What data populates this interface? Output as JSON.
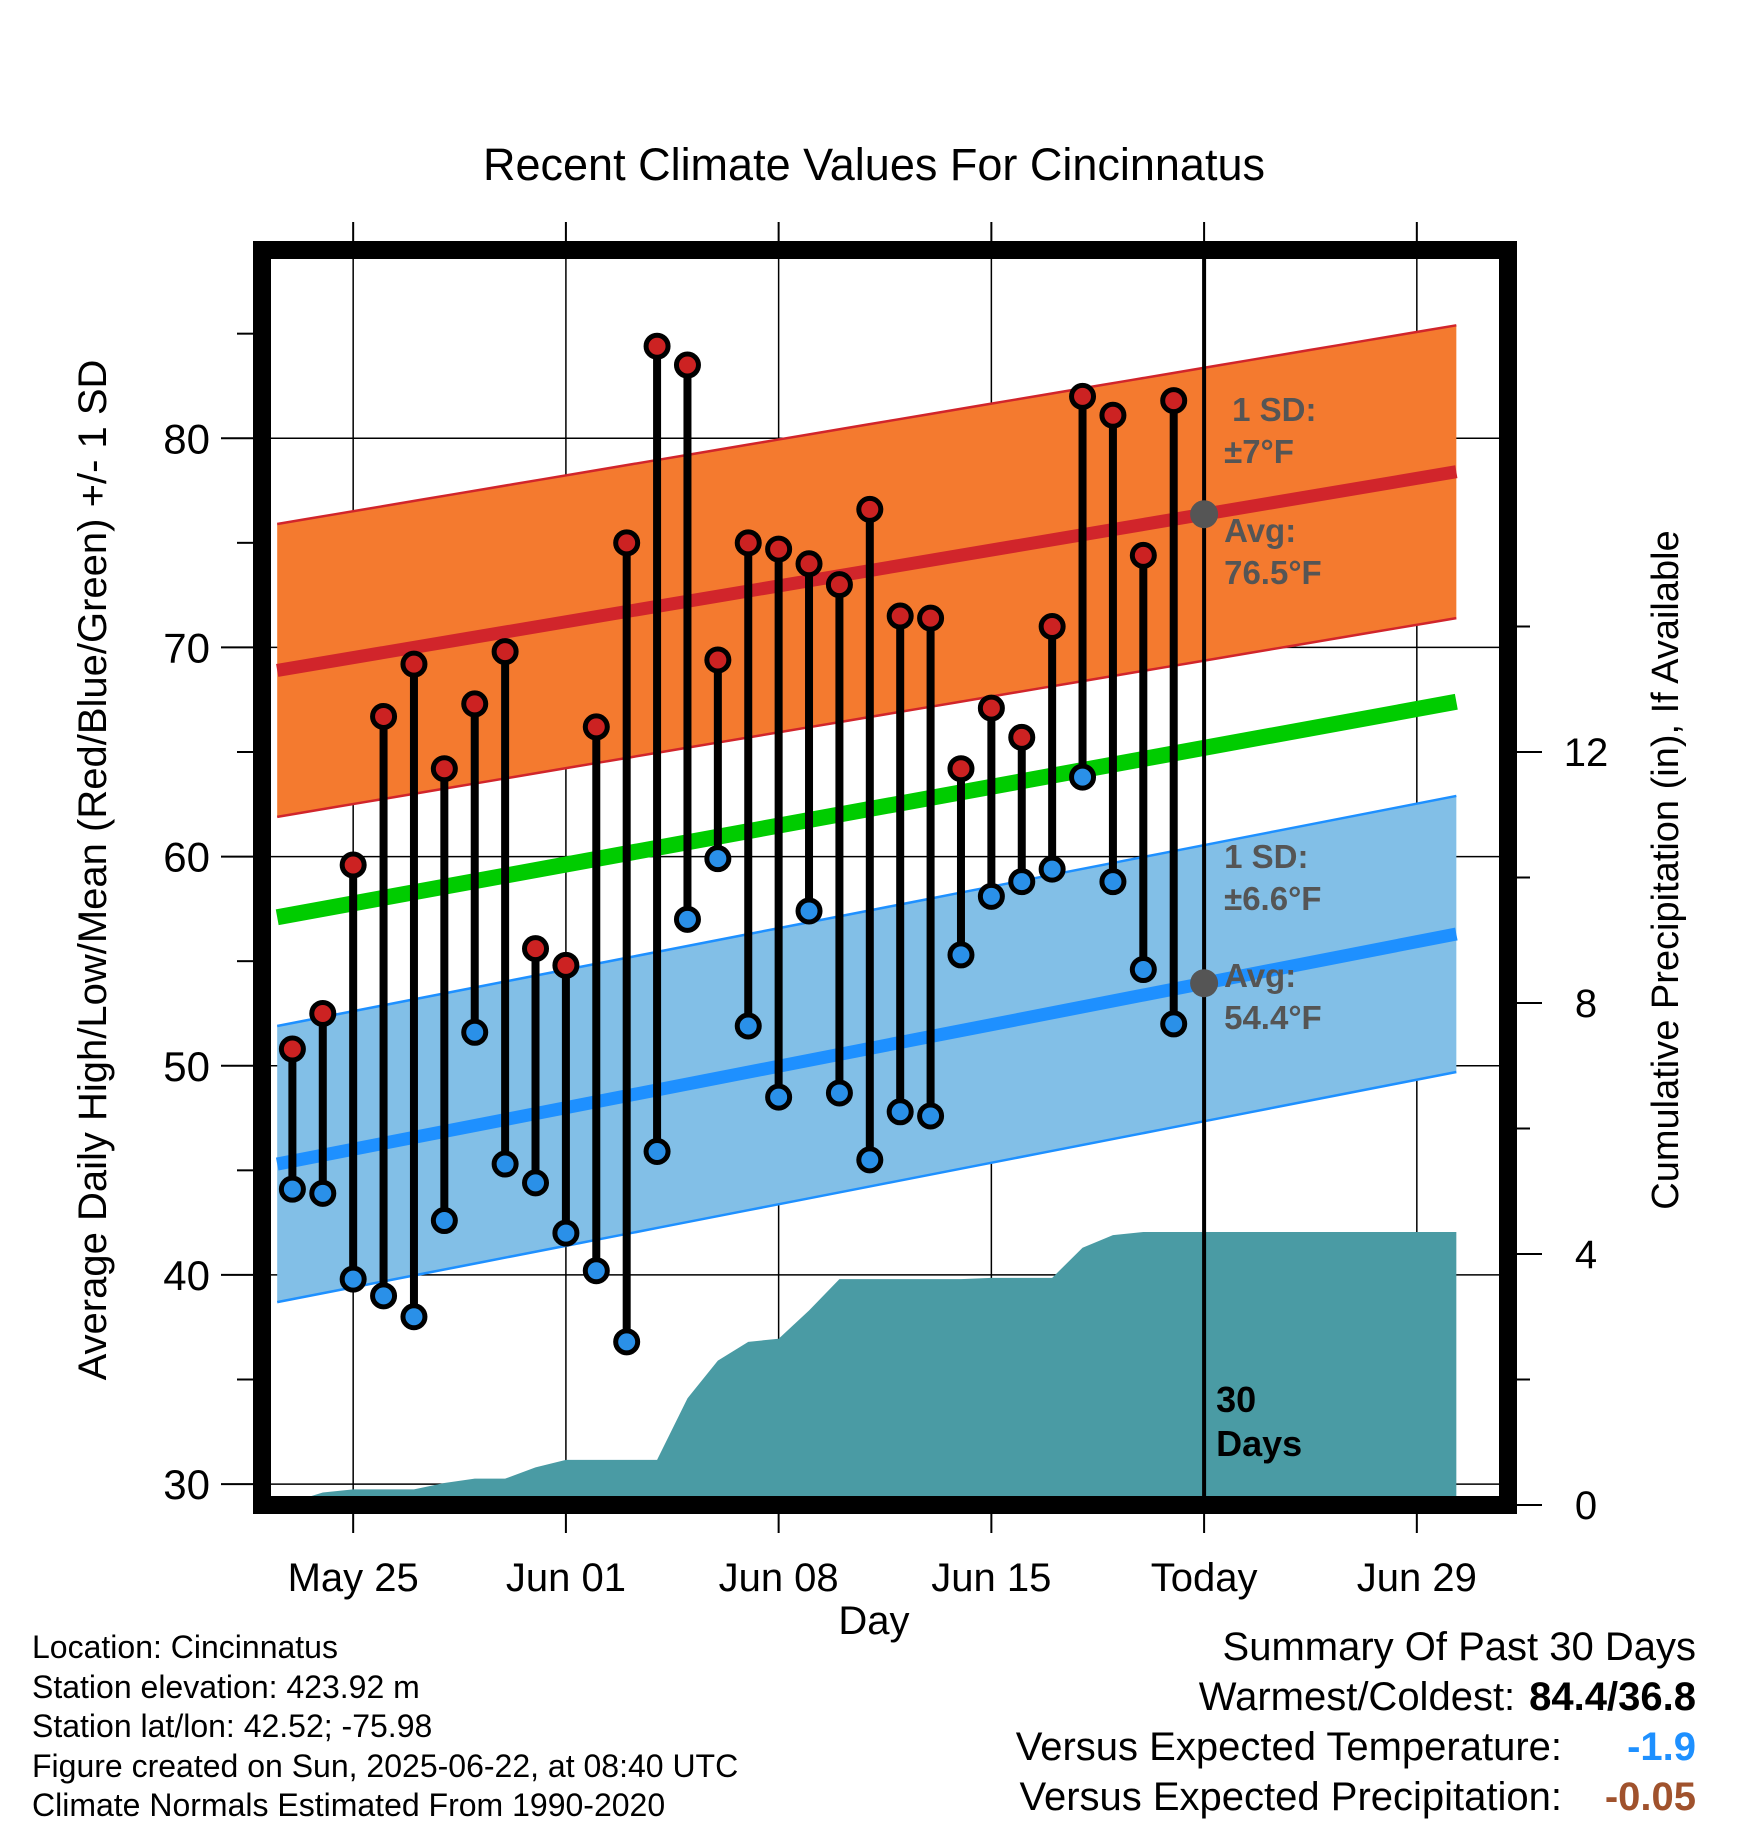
{
  "chart_data": {
    "type": "line",
    "title": "Recent Climate Values For Cincinnatus",
    "xlabel": "Day",
    "ylabel": "Average Daily High/Low/Mean (Red/Blue/Green) +/- 1 SD",
    "y2label": "Cumulative Precipitation (in), If Available",
    "ylim": [
      29,
      89
    ],
    "y2lim": [
      0,
      20
    ],
    "yticks": [
      "30",
      "40",
      "50",
      "60",
      "70",
      "80"
    ],
    "y2ticks": [
      "0",
      "4",
      "8",
      "12"
    ],
    "xticks": [
      {
        "day": 2,
        "label": "May 25"
      },
      {
        "day": 9,
        "label": "Jun 01"
      },
      {
        "day": 16,
        "label": "Jun 08"
      },
      {
        "day": 23,
        "label": "Jun 15"
      },
      {
        "day": 30,
        "label": "Today"
      },
      {
        "day": 37,
        "label": "Jun 29"
      }
    ],
    "xlim": [
      -1,
      40
    ],
    "grid": true,
    "today_day": 30,
    "window_label": "30\nDays",
    "highs": [
      50.8,
      52.5,
      59.6,
      66.7,
      69.2,
      64.2,
      67.3,
      69.8,
      55.6,
      54.8,
      66.2,
      75.0,
      84.4,
      83.5,
      69.4,
      75.0,
      74.7,
      74.0,
      73.0,
      76.6,
      71.5,
      71.4,
      64.2,
      67.1,
      65.7,
      71.0,
      82.0,
      81.1,
      74.4,
      81.8
    ],
    "lows": [
      44.1,
      43.9,
      39.8,
      39.0,
      38.0,
      42.6,
      51.6,
      45.3,
      44.4,
      42.0,
      40.2,
      36.8,
      45.9,
      57.0,
      59.9,
      51.9,
      48.5,
      57.4,
      48.7,
      45.5,
      47.8,
      47.6,
      55.3,
      58.1,
      58.8,
      59.4,
      63.8,
      58.8,
      54.6,
      52.0
    ],
    "normal_high": {
      "start": 68.9,
      "end": 78.4
    },
    "normal_low": {
      "start": 45.3,
      "end": 56.3
    },
    "normal_mean": {
      "start": 57.1,
      "end": 67.4
    },
    "high_sd": 7,
    "low_sd": 6.6,
    "precip_cumulative": [
      [
        -0.5,
        0
      ],
      [
        0,
        0.05
      ],
      [
        1,
        0.2
      ],
      [
        2,
        0.25
      ],
      [
        3,
        0.25
      ],
      [
        4,
        0.25
      ],
      [
        5,
        0.35
      ],
      [
        6,
        0.42
      ],
      [
        7,
        0.42
      ],
      [
        8,
        0.6
      ],
      [
        9,
        0.72
      ],
      [
        10,
        0.72
      ],
      [
        11,
        0.72
      ],
      [
        12,
        0.72
      ],
      [
        13,
        1.7
      ],
      [
        14,
        2.3
      ],
      [
        15,
        2.6
      ],
      [
        16,
        2.65
      ],
      [
        17,
        3.1
      ],
      [
        18,
        3.6
      ],
      [
        19,
        3.6
      ],
      [
        20,
        3.6
      ],
      [
        21,
        3.6
      ],
      [
        22,
        3.6
      ],
      [
        23,
        3.62
      ],
      [
        24,
        3.62
      ],
      [
        25,
        3.62
      ],
      [
        26,
        4.1
      ],
      [
        27,
        4.3
      ],
      [
        28,
        4.35
      ],
      [
        29,
        4.35
      ],
      [
        30,
        4.35
      ],
      [
        34,
        4.35
      ],
      [
        38,
        4.35
      ],
      [
        38.3,
        4.35
      ]
    ],
    "annotations": {
      "high_sd": [
        "1 SD:",
        "±7°F"
      ],
      "high_avg": [
        "Avg:",
        "76.5°F"
      ],
      "low_sd": [
        "1 SD:",
        "±6.6°F"
      ],
      "low_avg": [
        "Avg:",
        "54.4°F"
      ]
    },
    "colors": {
      "high_band": "#f47a2f",
      "high_line": "#d1252b",
      "low_band": "#82bfe7",
      "low_line": "#1e90ff",
      "mean_line": "#00cc00",
      "precip": "#4a9ba4",
      "high_dot": "#cc2222",
      "low_dot": "#2a90e8",
      "annotation": "#555555"
    }
  },
  "footer": {
    "location": "Location: Cincinnatus",
    "elevation": "Station elevation: 423.92 m",
    "latlon": "Station lat/lon: 42.52; -75.98",
    "created": "Figure created on Sun, 2025-06-22, at 08:40 UTC",
    "normals": "Climate Normals Estimated From 1990-2020"
  },
  "summary": {
    "heading": "Summary Of Past 30 Days",
    "warm_cold_label": "Warmest/Coldest:",
    "warm_cold_value": "84.4/36.8",
    "temp_label": "Versus Expected Temperature:",
    "temp_value": "-1.9",
    "precip_label": "Versus Expected Precipitation:",
    "precip_value": "-0.05"
  }
}
